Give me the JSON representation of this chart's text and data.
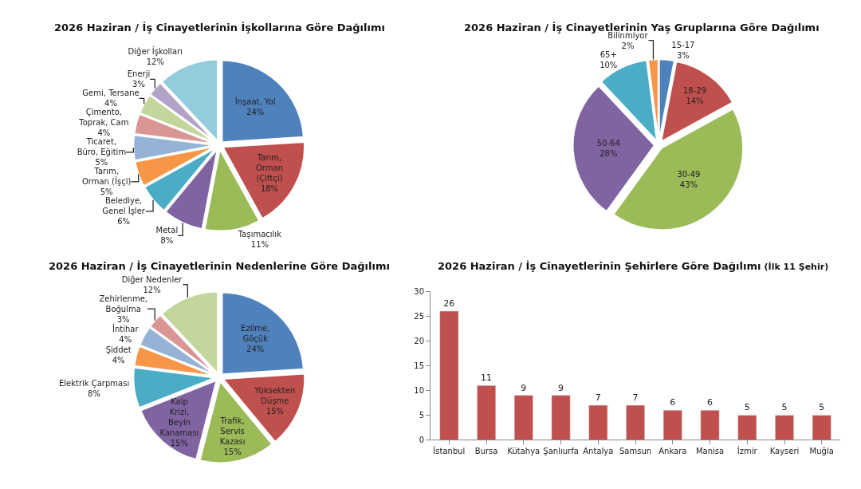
{
  "chart_data": [
    {
      "type": "pie",
      "title": "2026 Haziran / İş Cinayetlerinin İşkollarına Göre Dağılımı",
      "categories": [
        "İnşaat, Yol",
        "Tarım, Orman (Çiftçi)",
        "Taşımacılık",
        "Metal",
        "Belediye, Genel İşler",
        "Tarım, Orman (İşçi)",
        "Ticaret, Büro, Eğitim",
        "Çimento, Toprak, Cam",
        "Gemi, Tersane",
        "Enerji",
        "Diğer İşkolları"
      ],
      "values": [
        24,
        18,
        11,
        8,
        6,
        5,
        5,
        4,
        4,
        3,
        12
      ],
      "value_labels": [
        "24%",
        "18%",
        "11%",
        "8%",
        "6%",
        "5%",
        "5%",
        "4%",
        "4%",
        "3%",
        "12%"
      ],
      "colors": [
        "#4f81bd",
        "#c0504d",
        "#9bbb59",
        "#8064a2",
        "#4bacc6",
        "#f79646",
        "#95b3d7",
        "#d99694",
        "#c3d69b",
        "#b3a2c7",
        "#93cddd"
      ]
    },
    {
      "type": "pie",
      "title": "2026 Haziran / İş Cinayetlerinin Yaş Gruplarına Göre Dağılımı",
      "categories": [
        "15-17",
        "18-29",
        "30-49",
        "50-64",
        "65+",
        "Bilinmiyor"
      ],
      "values": [
        3,
        14,
        43,
        28,
        10,
        2
      ],
      "value_labels": [
        "3%",
        "14%",
        "43%",
        "28%",
        "10%",
        "2%"
      ],
      "colors": [
        "#4f81bd",
        "#c0504d",
        "#9bbb59",
        "#8064a2",
        "#4bacc6",
        "#f79646"
      ]
    },
    {
      "type": "pie",
      "title": "2026 Haziran / İş Cinayetlerinin Nedenlerine Göre Dağılımı",
      "categories": [
        "Ezilme, Göçük",
        "Yüksekten Düşme",
        "Trafik, Servis Kazası",
        "Kalp Krizi, Beyin Kanaması",
        "Elektrik Çarpması",
        "Şiddet",
        "İntihar",
        "Zehirlenme, Boğulma",
        "Diğer Nedenler"
      ],
      "values": [
        24,
        15,
        15,
        15,
        8,
        4,
        4,
        3,
        12
      ],
      "value_labels": [
        "24%",
        "15%",
        "15%",
        "15%",
        "8%",
        "4%",
        "4%",
        "3%",
        "12%"
      ],
      "colors": [
        "#4f81bd",
        "#c0504d",
        "#9bbb59",
        "#8064a2",
        "#4bacc6",
        "#f79646",
        "#95b3d7",
        "#d99694",
        "#c3d69b"
      ]
    },
    {
      "type": "bar",
      "title": "2026 Haziran / İş Cinayetlerinin Şehirlere Göre Dağılımı",
      "subtitle": "(İlk 11 Şehir)",
      "categories": [
        "İstanbul",
        "Bursa",
        "Kütahya",
        "Şanlıurfa",
        "Antalya",
        "Samsun",
        "Ankara",
        "Manisa",
        "İzmir",
        "Kayseri",
        "Muğla"
      ],
      "values": [
        26,
        11,
        9,
        9,
        7,
        7,
        6,
        6,
        5,
        5,
        5
      ],
      "color": "#c0504d",
      "ylim": [
        0,
        30
      ],
      "yticks": [
        0,
        5,
        10,
        15,
        20,
        25,
        30
      ],
      "data_labels": true
    }
  ]
}
